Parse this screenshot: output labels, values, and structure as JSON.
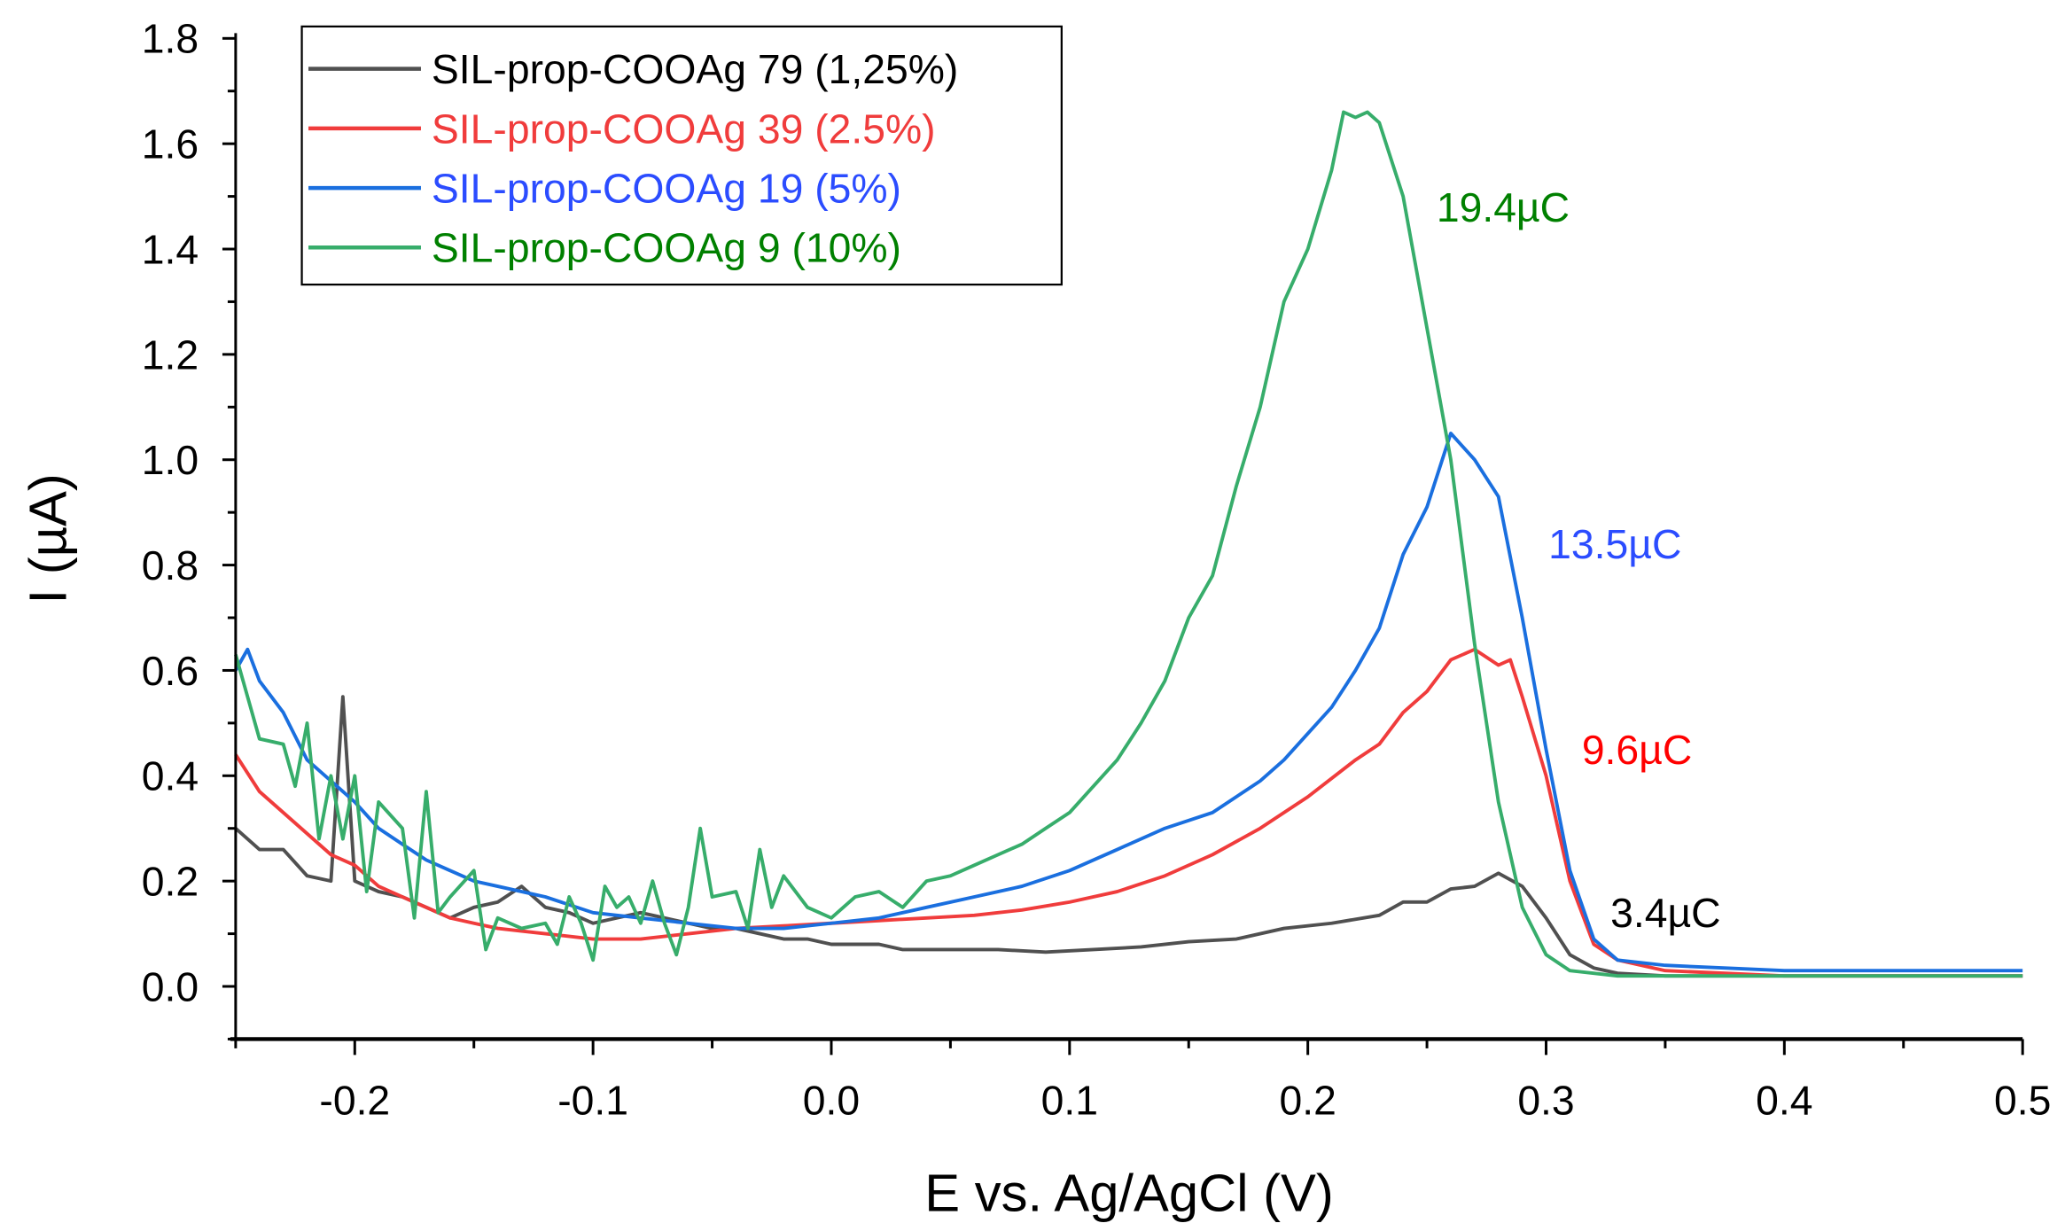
{
  "chart_data": {
    "type": "line",
    "title": "",
    "xlabel": "E vs. Ag/AgCl (V)",
    "ylabel": "I (µA)",
    "xlim": [
      -0.25,
      0.5
    ],
    "ylim": [
      -0.1,
      1.8
    ],
    "xticks": [
      "-0.2",
      "-0.1",
      "0.0",
      "0.1",
      "0.2",
      "0.3",
      "0.4",
      "0.5"
    ],
    "xtick_values": [
      -0.2,
      -0.1,
      0.0,
      0.1,
      0.2,
      0.3,
      0.4,
      0.5
    ],
    "yticks": [
      "0.0",
      "0.2",
      "0.4",
      "0.6",
      "0.8",
      "1.0",
      "1.2",
      "1.4",
      "1.6",
      "1.8"
    ],
    "ytick_values": [
      0,
      0.2,
      0.4,
      0.6,
      0.8,
      1.0,
      1.2,
      1.4,
      1.6,
      1.8
    ],
    "grid": false,
    "legend_position": "top-left",
    "series": [
      {
        "name": "SIL-prop-COOAg 79 (1,25%)",
        "color": "#505050",
        "text_color": "#000000",
        "x": [
          -0.25,
          -0.24,
          -0.23,
          -0.22,
          -0.21,
          -0.205,
          -0.2,
          -0.19,
          -0.18,
          -0.17,
          -0.16,
          -0.15,
          -0.14,
          -0.13,
          -0.12,
          -0.11,
          -0.1,
          -0.09,
          -0.08,
          -0.07,
          -0.06,
          -0.05,
          -0.04,
          -0.03,
          -0.02,
          -0.01,
          0,
          0.01,
          0.02,
          0.03,
          0.05,
          0.07,
          0.09,
          0.11,
          0.13,
          0.15,
          0.17,
          0.19,
          0.21,
          0.23,
          0.24,
          0.25,
          0.26,
          0.27,
          0.28,
          0.29,
          0.3,
          0.31,
          0.32,
          0.33,
          0.35,
          0.4,
          0.5
        ],
        "y": [
          0.3,
          0.26,
          0.26,
          0.21,
          0.2,
          0.55,
          0.2,
          0.18,
          0.17,
          0.15,
          0.13,
          0.15,
          0.16,
          0.19,
          0.15,
          0.14,
          0.12,
          0.13,
          0.14,
          0.13,
          0.12,
          0.11,
          0.11,
          0.1,
          0.09,
          0.09,
          0.08,
          0.08,
          0.08,
          0.07,
          0.07,
          0.07,
          0.065,
          0.07,
          0.075,
          0.085,
          0.09,
          0.11,
          0.12,
          0.135,
          0.16,
          0.16,
          0.185,
          0.19,
          0.215,
          0.19,
          0.13,
          0.06,
          0.035,
          0.025,
          0.02,
          0.02,
          0.02
        ]
      },
      {
        "name": "SIL-prop-COOAg 39 (2.5%)",
        "color": "#f03c3c",
        "text_color": "#f03c3c",
        "x": [
          -0.25,
          -0.24,
          -0.23,
          -0.22,
          -0.21,
          -0.2,
          -0.19,
          -0.18,
          -0.17,
          -0.16,
          -0.15,
          -0.14,
          -0.12,
          -0.1,
          -0.08,
          -0.06,
          -0.04,
          -0.02,
          0,
          0.02,
          0.04,
          0.06,
          0.08,
          0.1,
          0.12,
          0.14,
          0.16,
          0.18,
          0.2,
          0.22,
          0.23,
          0.24,
          0.25,
          0.26,
          0.27,
          0.28,
          0.285,
          0.29,
          0.3,
          0.31,
          0.32,
          0.33,
          0.35,
          0.4,
          0.5
        ],
        "y": [
          0.44,
          0.37,
          0.33,
          0.29,
          0.25,
          0.23,
          0.19,
          0.17,
          0.15,
          0.13,
          0.12,
          0.11,
          0.1,
          0.09,
          0.09,
          0.1,
          0.11,
          0.115,
          0.12,
          0.125,
          0.13,
          0.135,
          0.145,
          0.16,
          0.18,
          0.21,
          0.25,
          0.3,
          0.36,
          0.43,
          0.46,
          0.52,
          0.56,
          0.62,
          0.64,
          0.61,
          0.62,
          0.55,
          0.4,
          0.2,
          0.08,
          0.05,
          0.03,
          0.02,
          0.02
        ]
      },
      {
        "name": "SIL-prop-COOAg 19 (5%)",
        "color": "#1a6fdf",
        "text_color": "#2b4cff",
        "x": [
          -0.25,
          -0.245,
          -0.24,
          -0.23,
          -0.22,
          -0.21,
          -0.2,
          -0.19,
          -0.18,
          -0.17,
          -0.16,
          -0.15,
          -0.14,
          -0.12,
          -0.1,
          -0.08,
          -0.06,
          -0.04,
          -0.02,
          0,
          0.02,
          0.04,
          0.06,
          0.08,
          0.1,
          0.12,
          0.14,
          0.16,
          0.18,
          0.19,
          0.2,
          0.21,
          0.22,
          0.23,
          0.24,
          0.25,
          0.26,
          0.27,
          0.28,
          0.29,
          0.3,
          0.31,
          0.32,
          0.33,
          0.35,
          0.4,
          0.5
        ],
        "y": [
          0.6,
          0.64,
          0.58,
          0.52,
          0.43,
          0.39,
          0.35,
          0.3,
          0.27,
          0.24,
          0.22,
          0.2,
          0.19,
          0.17,
          0.14,
          0.13,
          0.12,
          0.11,
          0.11,
          0.12,
          0.13,
          0.15,
          0.17,
          0.19,
          0.22,
          0.26,
          0.3,
          0.33,
          0.39,
          0.43,
          0.48,
          0.53,
          0.6,
          0.68,
          0.82,
          0.91,
          1.05,
          1.0,
          0.93,
          0.7,
          0.45,
          0.22,
          0.09,
          0.05,
          0.04,
          0.03,
          0.03
        ]
      },
      {
        "name": "SIL-prop-COOAg 9 (10%)",
        "color": "#37ad6b",
        "text_color": "#008000",
        "x": [
          -0.25,
          -0.24,
          -0.23,
          -0.225,
          -0.22,
          -0.215,
          -0.21,
          -0.205,
          -0.2,
          -0.195,
          -0.19,
          -0.18,
          -0.175,
          -0.17,
          -0.165,
          -0.16,
          -0.15,
          -0.145,
          -0.14,
          -0.13,
          -0.12,
          -0.115,
          -0.11,
          -0.105,
          -0.1,
          -0.095,
          -0.09,
          -0.085,
          -0.08,
          -0.075,
          -0.07,
          -0.065,
          -0.06,
          -0.055,
          -0.05,
          -0.04,
          -0.035,
          -0.03,
          -0.025,
          -0.02,
          -0.01,
          0,
          0.01,
          0.02,
          0.03,
          0.04,
          0.05,
          0.06,
          0.07,
          0.08,
          0.09,
          0.1,
          0.11,
          0.12,
          0.13,
          0.14,
          0.15,
          0.16,
          0.17,
          0.18,
          0.19,
          0.2,
          0.21,
          0.215,
          0.22,
          0.225,
          0.23,
          0.24,
          0.25,
          0.26,
          0.27,
          0.28,
          0.29,
          0.3,
          0.31,
          0.33,
          0.4,
          0.5
        ],
        "y": [
          0.63,
          0.47,
          0.46,
          0.38,
          0.5,
          0.28,
          0.4,
          0.28,
          0.4,
          0.18,
          0.35,
          0.3,
          0.13,
          0.37,
          0.14,
          0.17,
          0.22,
          0.07,
          0.13,
          0.11,
          0.12,
          0.08,
          0.17,
          0.12,
          0.05,
          0.19,
          0.15,
          0.17,
          0.12,
          0.2,
          0.12,
          0.06,
          0.15,
          0.3,
          0.17,
          0.18,
          0.11,
          0.26,
          0.15,
          0.21,
          0.15,
          0.13,
          0.17,
          0.18,
          0.15,
          0.2,
          0.21,
          0.23,
          0.25,
          0.27,
          0.3,
          0.33,
          0.38,
          0.43,
          0.5,
          0.58,
          0.7,
          0.78,
          0.95,
          1.1,
          1.3,
          1.4,
          1.55,
          1.66,
          1.65,
          1.66,
          1.64,
          1.5,
          1.25,
          1.0,
          0.65,
          0.35,
          0.15,
          0.06,
          0.03,
          0.02,
          0.02,
          0.02
        ]
      }
    ],
    "annotations": [
      {
        "text": "19.4µC",
        "x": 0.254,
        "y": 1.48,
        "color": "#008000"
      },
      {
        "text": "13.5µC",
        "x": 0.301,
        "y": 0.84,
        "color": "#2b4cff"
      },
      {
        "text": "9.6µC",
        "x": 0.315,
        "y": 0.45,
        "color": "#ff0000"
      },
      {
        "text": "3.4µC",
        "x": 0.327,
        "y": 0.14,
        "color": "#000000"
      }
    ]
  }
}
